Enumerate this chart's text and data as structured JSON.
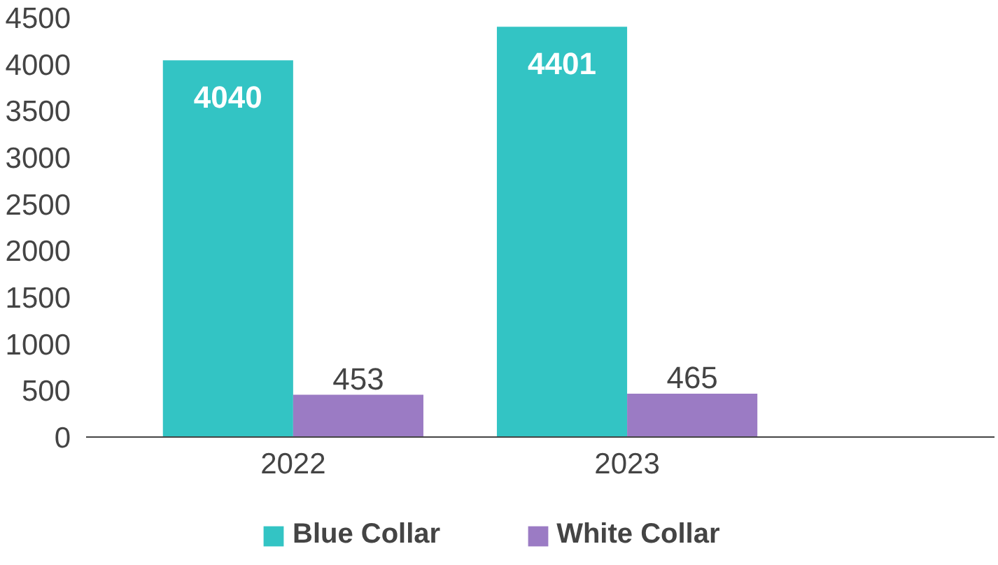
{
  "chart_data": {
    "type": "bar",
    "categories": [
      "2022",
      "2023",
      null
    ],
    "series": [
      {
        "name": "Blue Collar",
        "color": "#33c4c4",
        "values": [
          4040,
          4401,
          null
        ]
      },
      {
        "name": "White Collar",
        "color": "#9b7bc4",
        "values": [
          453,
          465,
          null
        ]
      }
    ],
    "ylim": [
      0,
      4500
    ],
    "yticks": [
      0,
      500,
      1000,
      1500,
      2000,
      2500,
      3000,
      3500,
      4000,
      4500
    ],
    "grid": false,
    "legend": "bottom",
    "data_labels": true
  }
}
